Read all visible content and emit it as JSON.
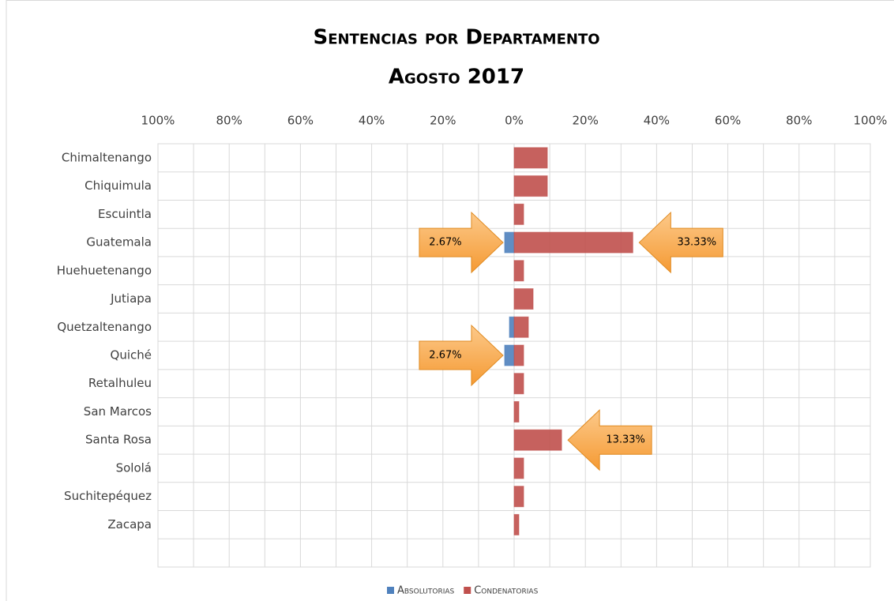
{
  "chart_data": {
    "type": "diverging_bar",
    "title": "Sentencias por Departamento",
    "subtitle": "Agosto 2017",
    "categories": [
      "Chimaltenango",
      "Chiquimula",
      "Escuintla",
      "Guatemala",
      "Huehuetenango",
      "Jutiapa",
      "Quetzaltenango",
      "Quiché",
      "Retalhuleu",
      "San Marcos",
      "Santa Rosa",
      "Sololá",
      "Suchitepéquez",
      "Zacapa",
      null
    ],
    "series": [
      {
        "name": "Absolutorias",
        "color": "#4f81bd",
        "values": [
          0,
          0,
          0,
          -2.67,
          0,
          0,
          -1.33,
          -2.67,
          0,
          0,
          0,
          0,
          0,
          0,
          null
        ],
        "value_labels": [
          null,
          null,
          null,
          "2.67%",
          null,
          null,
          null,
          "2.67%",
          null,
          null,
          null,
          null,
          null,
          null,
          null
        ]
      },
      {
        "name": "Condenatorias",
        "color": "#c0504d",
        "values": [
          9.33,
          9.33,
          2.67,
          33.33,
          2.67,
          5.33,
          4,
          2.67,
          2.67,
          1.33,
          13.33,
          2.67,
          2.67,
          1.33,
          null
        ],
        "value_labels": [
          null,
          null,
          null,
          "33.33%",
          null,
          null,
          null,
          null,
          null,
          null,
          "13.33%",
          null,
          null,
          null,
          null
        ]
      }
    ],
    "xlim": [
      -100,
      100
    ],
    "xticks": [
      {
        "value": -100,
        "label": "100%"
      },
      {
        "value": -80,
        "label": "80%"
      },
      {
        "value": -60,
        "label": "60%"
      },
      {
        "value": -40,
        "label": "40%"
      },
      {
        "value": -20,
        "label": "20%"
      },
      {
        "value": 0,
        "label": "0%"
      },
      {
        "value": 20,
        "label": "20%"
      },
      {
        "value": 40,
        "label": "40%"
      },
      {
        "value": 60,
        "label": "60%"
      },
      {
        "value": 80,
        "label": "80%"
      },
      {
        "value": 100,
        "label": "100%"
      }
    ],
    "grid": true,
    "legend": "bottom"
  }
}
